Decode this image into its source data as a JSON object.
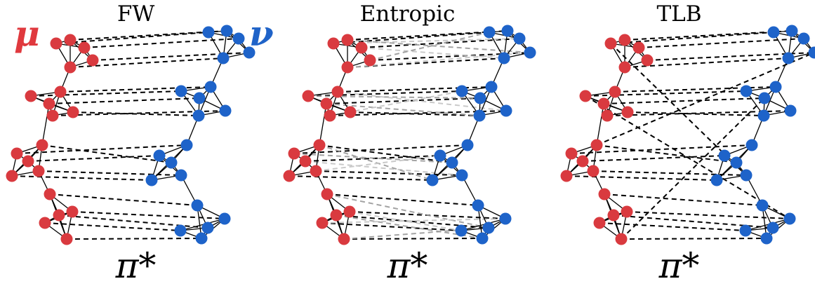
{
  "labels": {
    "mu": "μ",
    "nu": "ν",
    "mu_color": "#e0393e",
    "nu_color": "#1f63c8"
  },
  "panels": [
    {
      "title": "FW",
      "caption": "π*"
    },
    {
      "title": "Entropic",
      "caption": "π*"
    },
    {
      "title": "TLB",
      "caption": "π*"
    }
  ],
  "colors": {
    "red_node": "#d93a3f",
    "blue_node": "#1e63c9",
    "edge": "#000000",
    "coupling": "#000000"
  }
}
